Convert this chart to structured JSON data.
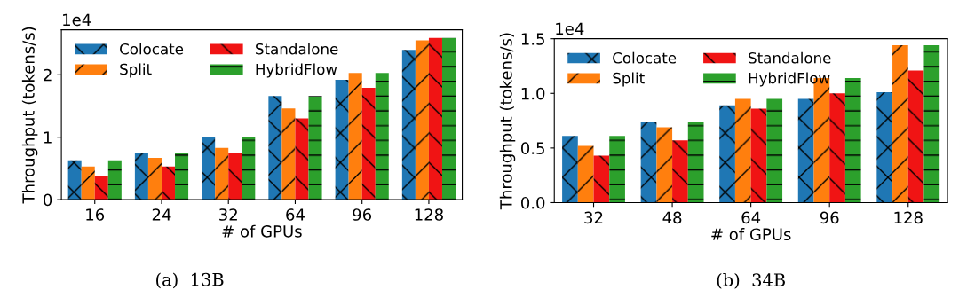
{
  "chart_data": [
    {
      "type": "bar",
      "xlabel": "# of GPUs",
      "ylabel": "Throughput (tokens/s)",
      "categories": [
        "16",
        "24",
        "32",
        "64",
        "96",
        "128"
      ],
      "ylim": [
        0,
        2.72
      ],
      "yticks": [
        0,
        1,
        2
      ],
      "legend": "top left",
      "grid": false,
      "annotations": [
        "1e4",
        "(a)  13B"
      ],
      "series": [
        {
          "name": "Colocate",
          "color": "#1f77b4",
          "values": [
            0.63,
            0.74,
            1.01,
            1.66,
            1.92,
            2.4
          ]
        },
        {
          "name": "Split",
          "color": "#ff7f0e",
          "values": [
            0.53,
            0.67,
            0.83,
            1.46,
            2.03,
            2.55
          ]
        },
        {
          "name": "Standalone",
          "color": "#f01414",
          "values": [
            0.38,
            0.53,
            0.74,
            1.3,
            1.79,
            2.59
          ]
        },
        {
          "name": "HybridFlow",
          "color": "#2ca02c",
          "values": [
            0.63,
            0.74,
            1.01,
            1.66,
            2.03,
            2.59
          ]
        }
      ]
    },
    {
      "type": "bar",
      "xlabel": "# of GPUs",
      "ylabel": "Throughput (tokens/s)",
      "categories": [
        "32",
        "48",
        "64",
        "96",
        "128"
      ],
      "ylim": [
        0,
        1.5
      ],
      "yticks": [
        {
          "value": 0,
          "label": "0.0"
        },
        0.5,
        {
          "value": 1,
          "label": "1.0"
        },
        1.5
      ],
      "legend": "top left",
      "grid": false,
      "annotations": [
        "1e4",
        "(b)  34B"
      ],
      "series": [
        {
          "name": "Colocate",
          "color": "#1f77b4",
          "values": [
            0.61,
            0.74,
            0.89,
            0.95,
            1.01
          ]
        },
        {
          "name": "Split",
          "color": "#ff7f0e",
          "values": [
            0.52,
            0.69,
            0.95,
            1.14,
            1.44
          ]
        },
        {
          "name": "Standalone",
          "color": "#f01414",
          "values": [
            0.43,
            0.57,
            0.86,
            1.0,
            1.21
          ]
        },
        {
          "name": "HybridFlow",
          "color": "#2ca02c",
          "values": [
            0.61,
            0.74,
            0.95,
            1.14,
            1.44
          ]
        }
      ]
    }
  ]
}
